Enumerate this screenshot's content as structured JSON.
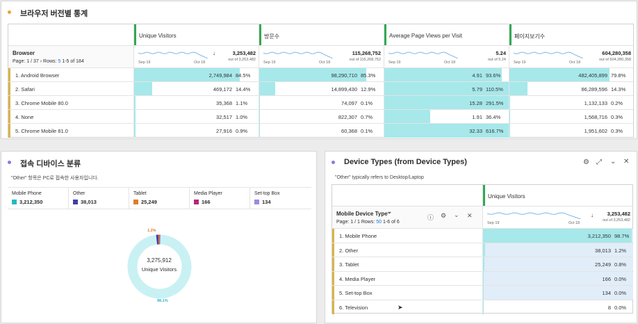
{
  "browser_panel": {
    "title": "브라우저 버전별 통계",
    "dimension_title": "Browser",
    "paging": {
      "page_prefix": "Page:",
      "page": "1",
      "page_total": "/ 37",
      "rows_label": "Rows:",
      "rows_value": "5",
      "range": "1-5 of 184"
    },
    "columns": [
      {
        "label": "Unique Visitors",
        "total": "3,253,482",
        "out_of": "out of 3,253,482",
        "spark_start": "Sep 19",
        "spark_end": "Oct 18"
      },
      {
        "label": "방문수",
        "total": "115,268,752",
        "out_of": "out of 115,268,752",
        "spark_start": "Sep 19",
        "spark_end": "Oct 18"
      },
      {
        "label": "Average Page Views per Visit",
        "total": "5.24",
        "out_of": "out of 5.24",
        "spark_start": "Sep 19",
        "spark_end": "Oct 18"
      },
      {
        "label": "페이지보기수",
        "total": "604,280,358",
        "out_of": "out of 604,280,358",
        "spark_start": "Sep 19",
        "spark_end": "Oct 18"
      }
    ],
    "rows": [
      {
        "label": "1. Android Browser",
        "cells": [
          {
            "v": "2,749,984",
            "p": "84.5%",
            "f": 0.845
          },
          {
            "v": "98,290,710",
            "p": "85.3%",
            "f": 0.853
          },
          {
            "v": "4.91",
            "p": "93.6%",
            "f": 0.936
          },
          {
            "v": "482,405,899",
            "p": "79.8%",
            "f": 0.798
          }
        ]
      },
      {
        "label": "2. Safari",
        "cells": [
          {
            "v": "469,172",
            "p": "14.4%",
            "f": 0.144
          },
          {
            "v": "14,899,430",
            "p": "12.9%",
            "f": 0.129
          },
          {
            "v": "5.79",
            "p": "110.5%",
            "f": 1.0
          },
          {
            "v": "86,289,596",
            "p": "14.3%",
            "f": 0.143
          }
        ]
      },
      {
        "label": "3. Chrome Mobile 80.0",
        "cells": [
          {
            "v": "35,368",
            "p": "1.1%",
            "f": 0.011
          },
          {
            "v": "74,097",
            "p": "0.1%",
            "f": 0.001
          },
          {
            "v": "15.28",
            "p": "291.5%",
            "f": 1.0
          },
          {
            "v": "1,132,133",
            "p": "0.2%",
            "f": 0.002
          }
        ]
      },
      {
        "label": "4. None",
        "cells": [
          {
            "v": "32,517",
            "p": "1.0%",
            "f": 0.01
          },
          {
            "v": "822,307",
            "p": "0.7%",
            "f": 0.007
          },
          {
            "v": "1.91",
            "p": "36.4%",
            "f": 0.364
          },
          {
            "v": "1,568,716",
            "p": "0.3%",
            "f": 0.003
          }
        ]
      },
      {
        "label": "5. Chrome Mobile 81.0",
        "cells": [
          {
            "v": "27,916",
            "p": "0.9%",
            "f": 0.009
          },
          {
            "v": "60,368",
            "p": "0.1%",
            "f": 0.001
          },
          {
            "v": "32.33",
            "p": "616.7%",
            "f": 1.0
          },
          {
            "v": "1,951,602",
            "p": "0.3%",
            "f": 0.003
          }
        ]
      }
    ]
  },
  "donut_panel": {
    "title": "접속 디바이스 분류",
    "subtitle": "\"Other\" 항목은 PC로 접속한 사용자입니다.",
    "legend": [
      {
        "name": "Mobile Phone",
        "value": "3,212,350",
        "color": "#23b9c4"
      },
      {
        "name": "Other",
        "value": "38,013",
        "color": "#3f3fa8"
      },
      {
        "name": "Tablet",
        "value": "25,249",
        "color": "#e07b2a"
      },
      {
        "name": "Media Player",
        "value": "166",
        "color": "#b3257a"
      },
      {
        "name": "Set-top Box",
        "value": "134",
        "color": "#9f86e6"
      }
    ],
    "center_value": "3,275,912",
    "center_label": "Unique Visitors",
    "top_label": "1.2%",
    "bottom_label": "98.1%",
    "fractions": [
      0.981,
      0.0116,
      0.0077,
      5e-05,
      4e-05
    ]
  },
  "device_panel": {
    "title": "Device Types (from Device Types)",
    "subtitle": "\"Other\" typically refers to Desktop/Laptop",
    "dimension_title": "Mobile Device Type",
    "paging": {
      "page_prefix": "Page:",
      "page": "1",
      "page_total": "/ 1",
      "rows_label": "Rows:",
      "rows_value": "50",
      "range": "1-6 of 6"
    },
    "column": {
      "label": "Unique Visitors",
      "total": "3,253,482",
      "out_of": "out of 3,253,482",
      "spark_start": "Sep 19",
      "spark_end": "Oct 18"
    },
    "rows": [
      {
        "label": "1. Mobile Phone",
        "v": "3,212,350",
        "p": "98.7%",
        "f": 0.987
      },
      {
        "label": "2. Other",
        "v": "38,013",
        "p": "1.2%",
        "f": 0.012
      },
      {
        "label": "3. Tablet",
        "v": "25,249",
        "p": "0.8%",
        "f": 0.008
      },
      {
        "label": "4. Media Player",
        "v": "166",
        "p": "0.0%",
        "f": 0.0
      },
      {
        "label": "5. Set-top Box",
        "v": "134",
        "p": "0.0%",
        "f": 0.0
      },
      {
        "label": "6. Television",
        "v": "8",
        "p": "0.0%",
        "f": 0.0
      }
    ]
  },
  "colors": {
    "accent_green": "#34a853",
    "row_marker": "#d9b54a",
    "fill_teal": "#a7e8ea",
    "fill_light": "#e1edf8",
    "dot_orange": "#e8a33d",
    "dot_purple": "#8a79e0"
  }
}
